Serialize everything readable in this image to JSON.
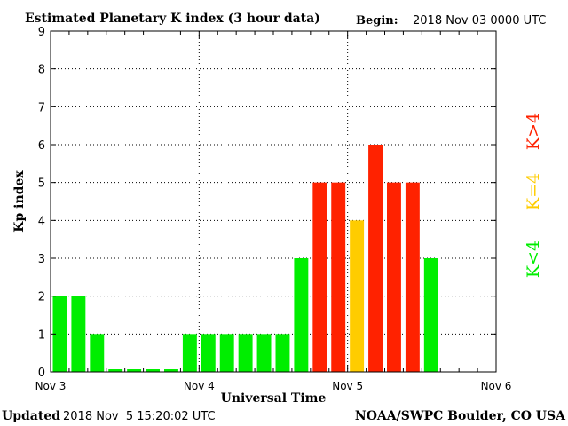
{
  "header": {
    "begin_label": "Begin:",
    "begin_value": "2018 Nov 03 0000 UTC"
  },
  "footer": {
    "updated_label": "Updated",
    "updated_value": "2018 Nov  5 15:20:02 UTC",
    "credit": "NOAA/SWPC Boulder, CO USA"
  },
  "legend": {
    "low": "K<4",
    "equal": "K=4",
    "high": "K>4"
  },
  "colors": {
    "low": "#00ee00",
    "equal": "#ffcc00",
    "high": "#ff2200",
    "grid": "#000000",
    "axis": "#000000"
  },
  "chart_data": {
    "type": "bar",
    "title": "Estimated Planetary K index (3 hour data)",
    "xlabel": "Universal Time",
    "ylabel": "Kp index",
    "ylim": [
      0,
      9
    ],
    "yticks": [
      "0",
      "1",
      "2",
      "3",
      "4",
      "5",
      "6",
      "7",
      "8",
      "9"
    ],
    "xticks": [
      "Nov 3",
      "Nov 4",
      "Nov 5",
      "Nov 6"
    ],
    "interval_hours": 3,
    "intervals_per_day": 8,
    "days_span": 3,
    "values": [
      2,
      2,
      1,
      0,
      0,
      0,
      0,
      1,
      1,
      1,
      1,
      1,
      1,
      3,
      5,
      5,
      4,
      6,
      5,
      5,
      3
    ],
    "grid": true,
    "legend_position": "right"
  }
}
